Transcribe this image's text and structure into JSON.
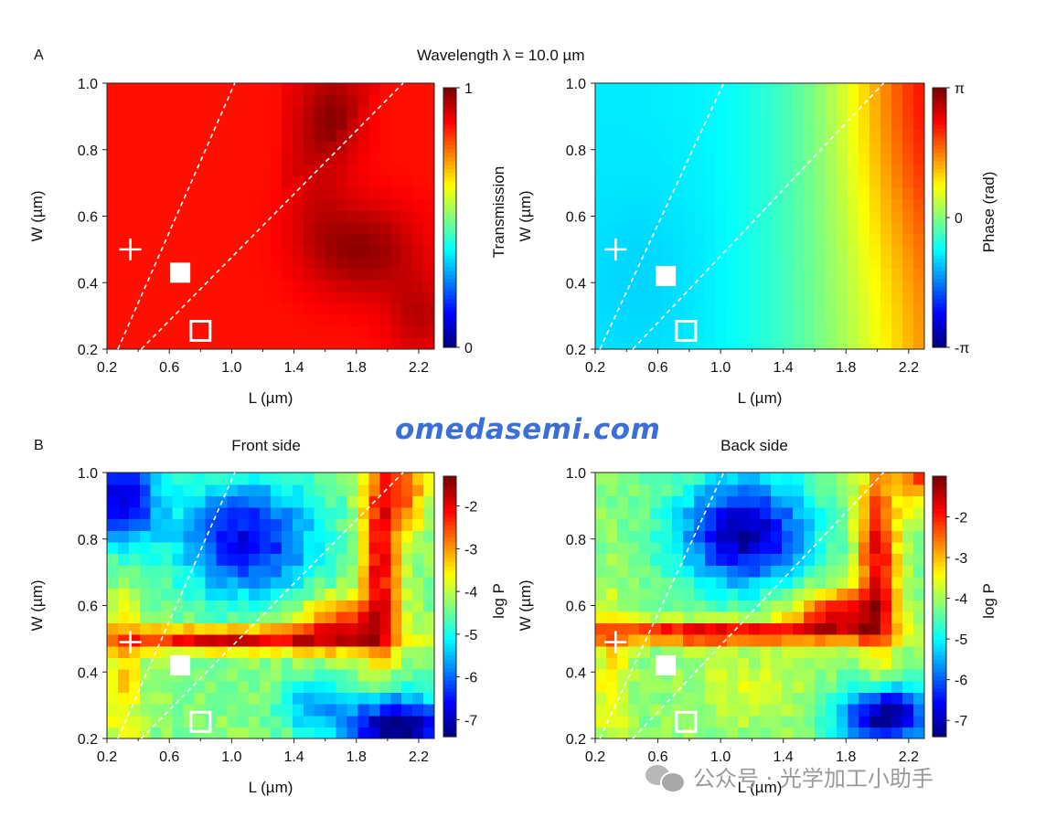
{
  "figure": {
    "title": "Wavelength λ = 10.0 µm",
    "panel_a_label": "A",
    "panel_b_label": "B",
    "watermark": "omedasemi.com",
    "wechat_text": "公众号 · 光学加工小助手"
  },
  "chart_data": [
    {
      "id": "transmission",
      "type": "heatmap",
      "title": "",
      "xlabel": "L (µm)",
      "ylabel": "W (µm)",
      "xlim": [
        0.2,
        2.3
      ],
      "ylim": [
        0.2,
        1.0
      ],
      "xticks": [
        "0.2",
        "0.6",
        "1.0",
        "1.4",
        "1.8",
        "2.2"
      ],
      "yticks": [
        "0.2",
        "0.4",
        "0.6",
        "0.8",
        "1.0"
      ],
      "colorbar": {
        "label": "Transmission",
        "range": [
          0,
          1
        ],
        "ticks": [
          "0",
          "1"
        ],
        "colormap": "jet"
      },
      "grid": {
        "x_cells": 30,
        "y_cells": 23,
        "description": "high transmission (~0.85) everywhere, rising to ~1.0 in a wedge centred near L≈1.8 µm, W≈0.5 µm and at the top edge near L≈1.7 µm"
      },
      "dashed_lines": [
        {
          "x": [
            0.27,
            1.02
          ],
          "y": [
            0.2,
            1.0
          ]
        },
        {
          "x": [
            0.42,
            2.1
          ],
          "y": [
            0.2,
            1.0
          ]
        }
      ],
      "markers": [
        {
          "shape": "plus",
          "x": 0.35,
          "y": 0.5
        },
        {
          "shape": "filled-square",
          "x": 0.67,
          "y": 0.43
        },
        {
          "shape": "open-square",
          "x": 0.8,
          "y": 0.255
        }
      ]
    },
    {
      "id": "phase",
      "type": "heatmap",
      "title": "",
      "xlabel": "L (µm)",
      "ylabel": "W (µm)",
      "xlim": [
        0.2,
        2.3
      ],
      "ylim": [
        0.2,
        1.0
      ],
      "xticks": [
        "0.2",
        "0.6",
        "1.0",
        "1.4",
        "1.8",
        "2.2"
      ],
      "yticks": [
        "0.2",
        "0.4",
        "0.6",
        "0.8",
        "1.0"
      ],
      "colorbar": {
        "label": "Phase (rad)",
        "range": [
          -3.1416,
          3.1416
        ],
        "ticks": [
          "-π",
          "0",
          "π"
        ],
        "colormap": "jet"
      },
      "grid": {
        "x_cells": 30,
        "y_cells": 23,
        "description": "phase ≈ -0.9 rad at small L, increasing towards π at L≈2.2 µm, W≈1.0 µm"
      },
      "dashed_lines": [
        {
          "x": [
            0.23,
            1.02
          ],
          "y": [
            0.2,
            1.0
          ]
        },
        {
          "x": [
            0.44,
            2.04
          ],
          "y": [
            0.2,
            1.0
          ]
        }
      ],
      "markers": [
        {
          "shape": "plus",
          "x": 0.33,
          "y": 0.5
        },
        {
          "shape": "filled-square",
          "x": 0.65,
          "y": 0.42
        },
        {
          "shape": "open-square",
          "x": 0.78,
          "y": 0.255
        }
      ]
    },
    {
      "id": "front",
      "type": "heatmap",
      "title": "Front side",
      "xlabel": "L (µm)",
      "ylabel": "W (µm)",
      "xlim": [
        0.2,
        2.3
      ],
      "ylim": [
        0.2,
        1.0
      ],
      "xticks": [
        "0.2",
        "0.6",
        "1.0",
        "1.4",
        "1.8",
        "2.2"
      ],
      "yticks": [
        "0.2",
        "0.4",
        "0.6",
        "0.8",
        "1.0"
      ],
      "colorbar": {
        "label": "log P",
        "range": [
          -7.4,
          -1.3
        ],
        "ticks": [
          "-2",
          "-3",
          "-4",
          "-5",
          "-6",
          "-7"
        ],
        "colormap": "jet"
      },
      "grid": {
        "x_cells": 30,
        "y_cells": 23,
        "description": "high ridge (log P ≈ -2) along W≈0.5 µm and along L≈1.9 µm; low (≈ -7) pockets at top-left, centre-top and bottom-right"
      },
      "dashed_lines": [
        {
          "x": [
            0.27,
            1.02
          ],
          "y": [
            0.2,
            1.0
          ]
        },
        {
          "x": [
            0.42,
            2.1
          ],
          "y": [
            0.2,
            1.0
          ]
        }
      ],
      "markers": [
        {
          "shape": "plus",
          "x": 0.35,
          "y": 0.49
        },
        {
          "shape": "filled-square",
          "x": 0.67,
          "y": 0.42
        },
        {
          "shape": "open-square",
          "x": 0.8,
          "y": 0.25
        }
      ]
    },
    {
      "id": "back",
      "type": "heatmap",
      "title": "Back side",
      "xlabel": "L (µm)",
      "ylabel": "W (µm)",
      "xlim": [
        0.2,
        2.3
      ],
      "ylim": [
        0.2,
        1.0
      ],
      "xticks": [
        "0.2",
        "0.6",
        "1.0",
        "1.4",
        "1.8",
        "2.2"
      ],
      "yticks": [
        "0.2",
        "0.4",
        "0.6",
        "0.8",
        "1.0"
      ],
      "colorbar": {
        "label": "log P",
        "range": [
          -7.4,
          -1.0
        ],
        "ticks": [
          "-2",
          "-3",
          "-4",
          "-5",
          "-6",
          "-7"
        ],
        "colormap": "jet"
      },
      "grid": {
        "x_cells": 30,
        "y_cells": 23,
        "description": "high ridge (log P ≈ -1.5) along W≈0.52 µm and along L≈1.95 µm; low (≈ -7) pocket centre-top and bottom-right"
      },
      "dashed_lines": [
        {
          "x": [
            0.23,
            1.02
          ],
          "y": [
            0.2,
            1.0
          ]
        },
        {
          "x": [
            0.44,
            2.04
          ],
          "y": [
            0.2,
            1.0
          ]
        }
      ],
      "markers": [
        {
          "shape": "plus",
          "x": 0.33,
          "y": 0.49
        },
        {
          "shape": "filled-square",
          "x": 0.65,
          "y": 0.42
        },
        {
          "shape": "open-square",
          "x": 0.78,
          "y": 0.25
        }
      ]
    }
  ]
}
